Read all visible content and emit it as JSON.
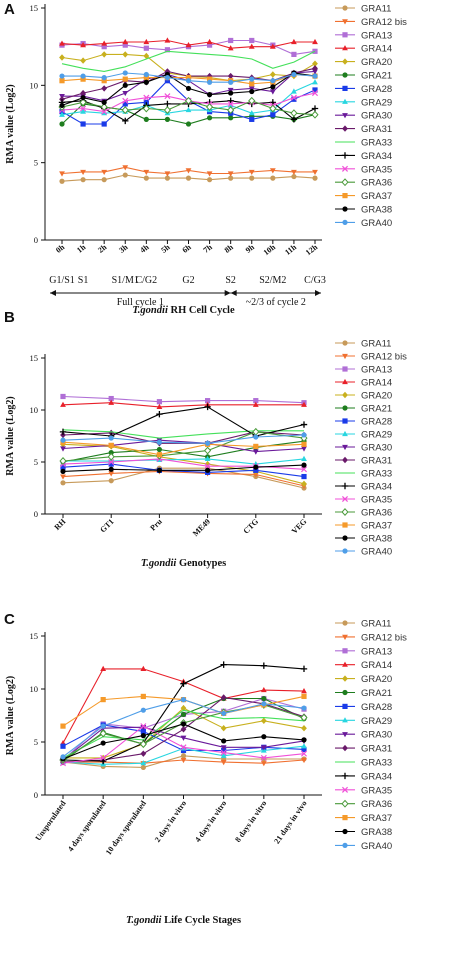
{
  "series_style": [
    {
      "name": "GRA11",
      "color": "#c79a5a",
      "marker": "circle"
    },
    {
      "name": "GRA12 bis",
      "color": "#f07030",
      "marker": "tri-down"
    },
    {
      "name": "GRA13",
      "color": "#b06fd6",
      "marker": "square"
    },
    {
      "name": "GRA14",
      "color": "#e8202a",
      "marker": "tri-up"
    },
    {
      "name": "GRA20",
      "color": "#c8b01e",
      "marker": "diamond"
    },
    {
      "name": "GRA21",
      "color": "#1e7d1e",
      "marker": "circle"
    },
    {
      "name": "GRA28",
      "color": "#1a3be8",
      "marker": "square"
    },
    {
      "name": "GRA29",
      "color": "#28d6e0",
      "marker": "tri-up"
    },
    {
      "name": "GRA30",
      "color": "#6a1a9a",
      "marker": "tri-down"
    },
    {
      "name": "GRA31",
      "color": "#6a1a6a",
      "marker": "diamond"
    },
    {
      "name": "GRA33",
      "color": "#44e05a",
      "marker": "none"
    },
    {
      "name": "GRA34",
      "color": "#000000",
      "marker": "plus"
    },
    {
      "name": "GRA35",
      "color": "#f050d8",
      "marker": "x"
    },
    {
      "name": "GRA36",
      "color": "#4a9a3a",
      "marker": "diamond-open"
    },
    {
      "name": "GRA37",
      "color": "#f59a2a",
      "marker": "square"
    },
    {
      "name": "GRA38",
      "color": "#000000",
      "marker": "circle"
    },
    {
      "name": "GRA40",
      "color": "#4f9ee8",
      "marker": "circle"
    }
  ],
  "chart_data": [
    {
      "type": "line",
      "panel_label": "A",
      "xlabel_italic": "T.gondii",
      "xlabel_rest": " RH Cell Cycle",
      "ylabel": "RMA value (Log2)",
      "ylim": [
        0,
        15
      ],
      "yticks": [
        0,
        5,
        10,
        15
      ],
      "categories": [
        "0h",
        "1h",
        "2h",
        "3h",
        "4h",
        "5h",
        "6h",
        "7h",
        "8h",
        "9h",
        "10h",
        "11h",
        "12h"
      ],
      "phases": [
        {
          "label": "G1/S1"
        },
        {
          "label": "S1"
        },
        {
          "label": "S1/M1"
        },
        {
          "label": "C/G2"
        },
        {
          "label": "G2"
        },
        {
          "label": "S2"
        },
        {
          "label": "S2/M2"
        },
        {
          "label": "C/G3"
        }
      ],
      "cycle_labels": [
        "Full cycle 1",
        "~2/3 of cycle 2"
      ],
      "series": [
        {
          "name": "GRA11",
          "values": [
            3.8,
            3.9,
            3.9,
            4.2,
            4.0,
            4.0,
            4.0,
            3.9,
            4.0,
            4.0,
            4.0,
            4.1,
            4.0
          ]
        },
        {
          "name": "GRA12 bis",
          "values": [
            4.3,
            4.4,
            4.4,
            4.7,
            4.4,
            4.3,
            4.5,
            4.3,
            4.3,
            4.4,
            4.5,
            4.4,
            4.4
          ]
        },
        {
          "name": "GRA13",
          "values": [
            12.6,
            12.7,
            12.5,
            12.6,
            12.4,
            12.3,
            12.5,
            12.6,
            12.9,
            12.9,
            12.6,
            12.0,
            12.2
          ]
        },
        {
          "name": "GRA14",
          "values": [
            12.7,
            12.6,
            12.7,
            12.8,
            12.8,
            12.9,
            12.6,
            12.8,
            12.4,
            12.5,
            12.5,
            12.8,
            12.8
          ]
        },
        {
          "name": "GRA20",
          "values": [
            11.8,
            11.6,
            12.0,
            12.0,
            11.9,
            10.8,
            10.6,
            10.5,
            10.3,
            10.4,
            10.7,
            10.6,
            11.4
          ]
        },
        {
          "name": "GRA21",
          "values": [
            7.5,
            8.8,
            8.6,
            8.4,
            7.8,
            7.8,
            7.5,
            7.9,
            7.9,
            8.0,
            8.0,
            7.8,
            8.1
          ]
        },
        {
          "name": "GRA28",
          "values": [
            8.3,
            7.5,
            7.5,
            8.8,
            8.9,
            10.3,
            9.0,
            8.3,
            8.2,
            7.8,
            8.1,
            9.1,
            9.7
          ]
        },
        {
          "name": "GRA29",
          "values": [
            8.1,
            8.3,
            8.2,
            8.3,
            8.7,
            8.2,
            8.4,
            8.4,
            8.7,
            8.2,
            8.4,
            9.6,
            10.2
          ]
        },
        {
          "name": "GRA30",
          "values": [
            9.3,
            9.3,
            9.0,
            9.5,
            10.4,
            10.7,
            10.3,
            9.4,
            9.7,
            9.8,
            9.6,
            10.8,
            10.9
          ]
        },
        {
          "name": "GRA31",
          "values": [
            9.1,
            9.5,
            9.8,
            10.3,
            10.2,
            10.9,
            10.6,
            10.6,
            10.6,
            10.5,
            10.3,
            10.8,
            11.1
          ]
        },
        {
          "name": "GRA33",
          "values": [
            11.4,
            11.1,
            10.9,
            11.2,
            11.7,
            12.2,
            12.1,
            12.0,
            11.9,
            11.7,
            11.1,
            11.5,
            12.2
          ]
        },
        {
          "name": "GRA34",
          "values": [
            8.9,
            9.0,
            8.5,
            7.7,
            8.7,
            8.8,
            8.8,
            8.9,
            9.0,
            8.8,
            8.9,
            7.8,
            8.5
          ]
        },
        {
          "name": "GRA35",
          "values": [
            8.4,
            8.5,
            8.3,
            9.0,
            9.2,
            9.3,
            9.0,
            8.8,
            8.8,
            8.9,
            8.7,
            9.2,
            9.5
          ]
        },
        {
          "name": "GRA36",
          "values": [
            8.6,
            8.9,
            8.6,
            8.4,
            8.5,
            8.4,
            9.0,
            8.6,
            8.4,
            9.0,
            8.5,
            8.2,
            8.1
          ]
        },
        {
          "name": "GRA37",
          "values": [
            10.3,
            10.4,
            10.3,
            10.4,
            10.5,
            10.5,
            10.5,
            10.4,
            10.3,
            10.1,
            10.2,
            10.7,
            10.6
          ]
        },
        {
          "name": "GRA38",
          "values": [
            8.7,
            9.2,
            8.9,
            10.0,
            10.2,
            10.7,
            9.8,
            9.4,
            9.5,
            9.6,
            9.9,
            10.8,
            10.6
          ]
        },
        {
          "name": "GRA40",
          "values": [
            10.6,
            10.6,
            10.5,
            10.8,
            10.7,
            10.5,
            10.3,
            10.2,
            10.2,
            10.4,
            10.3,
            10.7,
            10.6
          ]
        }
      ]
    },
    {
      "type": "line",
      "panel_label": "B",
      "xlabel_italic": "T.gondii",
      "xlabel_rest": " Genotypes",
      "ylabel": "RMA value (Log2)",
      "ylim": [
        0,
        15
      ],
      "yticks": [
        0,
        5,
        10,
        15
      ],
      "categories": [
        "RH",
        "GT1",
        "Pru",
        "ME49",
        "CTG",
        "VEG"
      ],
      "series": [
        {
          "name": "GRA11",
          "values": [
            3.0,
            3.2,
            4.4,
            4.4,
            3.6,
            2.5
          ]
        },
        {
          "name": "GRA12 bis",
          "values": [
            3.6,
            3.9,
            4.1,
            3.9,
            3.8,
            2.7
          ]
        },
        {
          "name": "GRA13",
          "values": [
            11.3,
            11.1,
            10.8,
            10.9,
            10.9,
            10.7
          ]
        },
        {
          "name": "GRA14",
          "values": [
            10.5,
            10.7,
            10.3,
            10.5,
            10.5,
            10.5
          ]
        },
        {
          "name": "GRA20",
          "values": [
            6.7,
            6.5,
            5.5,
            4.8,
            4.1,
            2.9
          ]
        },
        {
          "name": "GRA21",
          "values": [
            5.0,
            5.9,
            6.2,
            5.5,
            6.4,
            7.0
          ]
        },
        {
          "name": "GRA28",
          "values": [
            4.5,
            4.8,
            4.2,
            4.0,
            4.2,
            3.6
          ]
        },
        {
          "name": "GRA29",
          "values": [
            5.1,
            5.1,
            5.2,
            5.3,
            4.8,
            5.3
          ]
        },
        {
          "name": "GRA30",
          "values": [
            6.3,
            6.6,
            7.1,
            6.8,
            6.0,
            6.3
          ]
        },
        {
          "name": "GRA31",
          "values": [
            7.6,
            7.8,
            6.8,
            6.8,
            7.9,
            7.6
          ]
        },
        {
          "name": "GRA33",
          "values": [
            8.1,
            7.9,
            7.3,
            7.7,
            8.0,
            8.0
          ]
        },
        {
          "name": "GRA34",
          "values": [
            7.9,
            7.5,
            9.6,
            10.3,
            7.5,
            8.6
          ]
        },
        {
          "name": "GRA35",
          "values": [
            4.8,
            5.0,
            5.3,
            4.6,
            4.6,
            4.3
          ]
        },
        {
          "name": "GRA36",
          "values": [
            5.1,
            5.5,
            5.6,
            6.1,
            7.9,
            7.3
          ]
        },
        {
          "name": "GRA37",
          "values": [
            6.9,
            6.6,
            5.7,
            6.7,
            6.5,
            6.7
          ]
        },
        {
          "name": "GRA38",
          "values": [
            4.1,
            4.3,
            4.2,
            4.2,
            4.5,
            4.7
          ]
        },
        {
          "name": "GRA40",
          "values": [
            7.1,
            7.3,
            6.9,
            6.8,
            7.4,
            7.6
          ]
        }
      ]
    },
    {
      "type": "line",
      "panel_label": "C",
      "xlabel_italic": "T.gondii",
      "xlabel_rest": " Life Cycle Stages",
      "ylabel": "RMA value (Log2)",
      "ylim": [
        0,
        15
      ],
      "yticks": [
        0,
        5,
        10,
        15
      ],
      "categories": [
        "Unsporulated",
        "4 days sporulated",
        "10 days sporulated",
        "2 days in vitro",
        "4 days in vitro",
        "8 days in vitro",
        "21 days in vivo"
      ],
      "series": [
        {
          "name": "GRA11",
          "values": [
            3.1,
            2.7,
            2.6,
            3.7,
            3.4,
            3.4,
            3.4
          ]
        },
        {
          "name": "GRA12 bis",
          "values": [
            3.1,
            3.1,
            3.0,
            3.3,
            3.1,
            3.0,
            3.3
          ]
        },
        {
          "name": "GRA13",
          "values": [
            3.3,
            6.7,
            6.3,
            7.6,
            7.9,
            9.1,
            8.1
          ]
        },
        {
          "name": "GRA14",
          "values": [
            4.9,
            11.9,
            11.9,
            10.7,
            9.1,
            9.9,
            9.8
          ]
        },
        {
          "name": "GRA20",
          "values": [
            3.5,
            3.5,
            4.8,
            8.2,
            6.3,
            7.0,
            6.3
          ]
        },
        {
          "name": "GRA21",
          "values": [
            3.2,
            5.9,
            4.8,
            7.6,
            9.1,
            9.1,
            7.2
          ]
        },
        {
          "name": "GRA28",
          "values": [
            4.6,
            6.6,
            6.0,
            4.2,
            4.2,
            4.5,
            4.3
          ]
        },
        {
          "name": "GRA29",
          "values": [
            3.1,
            2.9,
            3.0,
            4.4,
            3.7,
            4.2,
            4.6
          ]
        },
        {
          "name": "GRA30",
          "values": [
            3.3,
            6.3,
            6.4,
            5.4,
            4.5,
            4.5,
            5.1
          ]
        },
        {
          "name": "GRA31",
          "values": [
            3.1,
            3.3,
            3.9,
            6.2,
            9.2,
            8.6,
            7.4
          ]
        },
        {
          "name": "GRA33",
          "values": [
            3.5,
            5.5,
            5.2,
            8.0,
            7.2,
            7.3,
            7.0
          ]
        },
        {
          "name": "GRA34",
          "values": [
            3.3,
            3.2,
            4.9,
            10.5,
            12.3,
            12.2,
            11.9
          ]
        },
        {
          "name": "GRA35",
          "values": [
            3.0,
            3.5,
            6.5,
            4.5,
            4.0,
            3.5,
            3.9
          ]
        },
        {
          "name": "GRA36",
          "values": [
            3.3,
            5.8,
            4.8,
            6.8,
            7.8,
            8.5,
            7.3
          ]
        },
        {
          "name": "GRA37",
          "values": [
            6.5,
            9.0,
            9.3,
            9.0,
            7.7,
            8.5,
            9.3
          ]
        },
        {
          "name": "GRA38",
          "values": [
            3.4,
            4.9,
            5.6,
            6.7,
            5.1,
            5.5,
            5.2
          ]
        },
        {
          "name": "GRA40",
          "values": [
            3.6,
            6.5,
            8.0,
            9.0,
            7.7,
            8.6,
            8.2
          ]
        }
      ]
    }
  ]
}
